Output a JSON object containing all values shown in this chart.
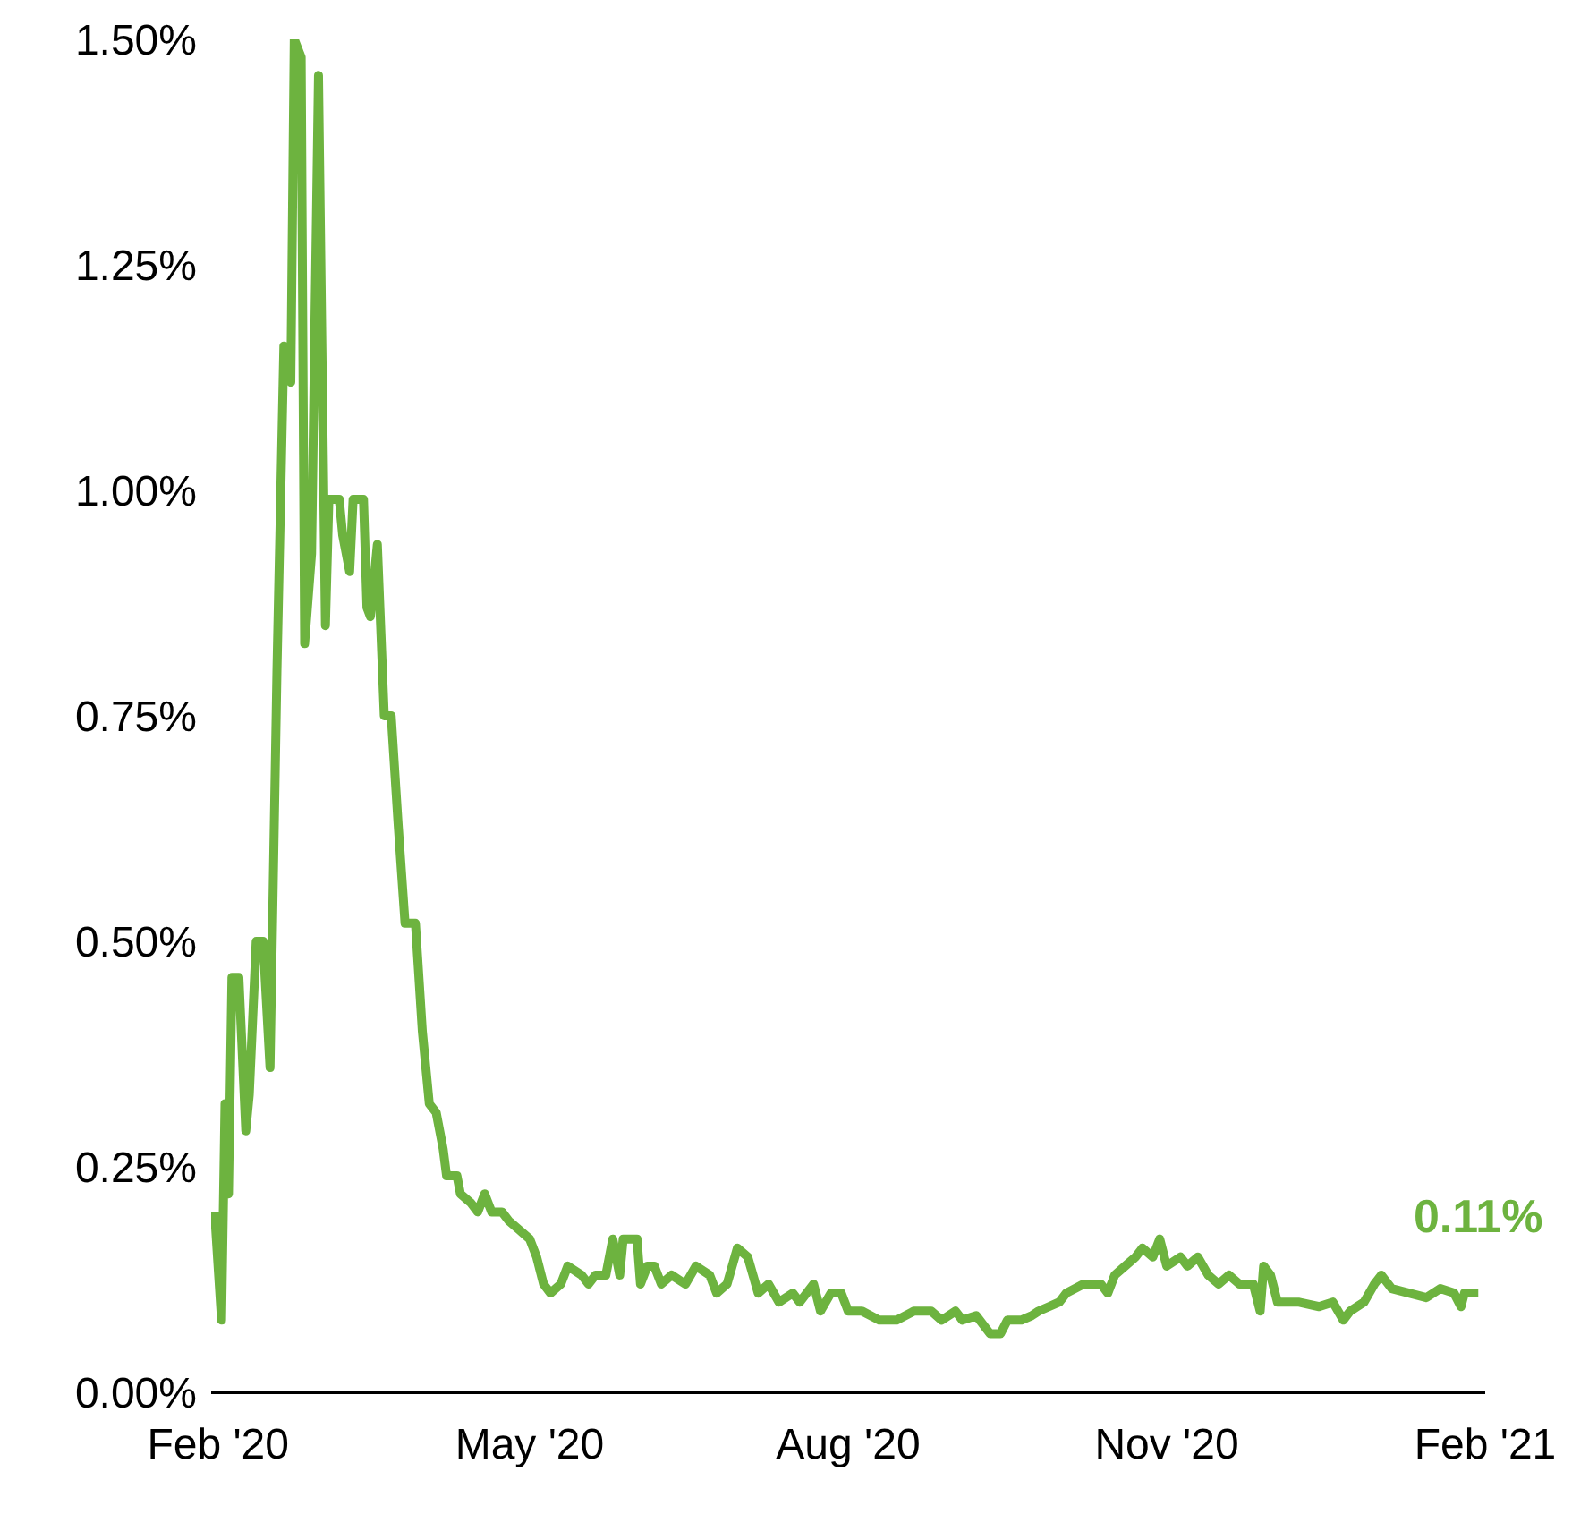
{
  "chart_data": {
    "type": "line",
    "color": "#6db33f",
    "grid": false,
    "marker": "none",
    "line_style": "solid",
    "x": [
      "2020-01-31",
      "2020-02-02",
      "2020-02-03",
      "2020-02-04",
      "2020-02-05",
      "2020-02-07",
      "2020-02-09",
      "2020-02-10",
      "2020-02-12",
      "2020-02-14",
      "2020-02-16",
      "2020-02-18",
      "2020-02-20",
      "2020-02-22",
      "2020-02-23",
      "2020-02-25",
      "2020-02-26",
      "2020-02-28",
      "2020-03-01",
      "2020-03-03",
      "2020-03-04",
      "2020-03-07",
      "2020-03-08",
      "2020-03-10",
      "2020-03-11",
      "2020-03-14",
      "2020-03-15",
      "2020-03-16",
      "2020-03-18",
      "2020-03-20",
      "2020-03-22",
      "2020-03-24",
      "2020-03-26",
      "2020-03-29",
      "2020-03-31",
      "2020-04-02",
      "2020-04-04",
      "2020-04-06",
      "2020-04-07",
      "2020-04-10",
      "2020-04-11",
      "2020-04-14",
      "2020-04-16",
      "2020-04-18",
      "2020-04-20",
      "2020-04-23",
      "2020-04-25",
      "2020-04-28",
      "2020-05-01",
      "2020-05-03",
      "2020-05-05",
      "2020-05-07",
      "2020-05-10",
      "2020-05-12",
      "2020-05-16",
      "2020-05-18",
      "2020-05-20",
      "2020-05-23",
      "2020-05-25",
      "2020-05-27",
      "2020-05-28",
      "2020-06-01",
      "2020-06-02",
      "2020-06-04",
      "2020-06-06",
      "2020-06-08",
      "2020-06-11",
      "2020-06-15",
      "2020-06-18",
      "2020-06-22",
      "2020-06-24",
      "2020-06-27",
      "2020-06-30",
      "2020-07-03",
      "2020-07-06",
      "2020-07-09",
      "2020-07-12",
      "2020-07-16",
      "2020-07-18",
      "2020-07-22",
      "2020-07-24",
      "2020-07-27",
      "2020-07-30",
      "2020-08-01",
      "2020-08-05",
      "2020-08-10",
      "2020-08-15",
      "2020-08-20",
      "2020-08-25",
      "2020-08-28",
      "2020-09-01",
      "2020-09-03",
      "2020-09-07",
      "2020-09-11",
      "2020-09-14",
      "2020-09-16",
      "2020-09-20",
      "2020-09-23",
      "2020-09-25",
      "2020-09-28",
      "2020-10-01",
      "2020-10-03",
      "2020-10-08",
      "2020-10-13",
      "2020-10-15",
      "2020-10-17",
      "2020-10-20",
      "2020-10-23",
      "2020-10-25",
      "2020-10-28",
      "2020-10-30",
      "2020-11-01",
      "2020-11-05",
      "2020-11-07",
      "2020-11-10",
      "2020-11-13",
      "2020-11-16",
      "2020-11-19",
      "2020-11-22",
      "2020-11-26",
      "2020-11-28",
      "2020-11-29",
      "2020-12-01",
      "2020-12-03",
      "2020-12-09",
      "2020-12-15",
      "2020-12-19",
      "2020-12-22",
      "2020-12-24",
      "2020-12-28",
      "2020-12-31",
      "2021-01-02",
      "2021-01-05",
      "2021-01-10",
      "2021-01-15",
      "2021-01-19",
      "2021-01-23",
      "2021-01-25",
      "2021-01-26",
      "2021-01-30"
    ],
    "values": [
      0.2,
      0.08,
      0.32,
      0.22,
      0.46,
      0.46,
      0.29,
      0.33,
      0.5,
      0.5,
      0.36,
      0.8,
      1.16,
      1.12,
      1.5,
      1.48,
      0.83,
      0.93,
      1.46,
      0.85,
      0.99,
      0.99,
      0.95,
      0.91,
      0.99,
      0.99,
      0.87,
      0.86,
      0.94,
      0.75,
      0.75,
      0.63,
      0.52,
      0.52,
      0.4,
      0.32,
      0.31,
      0.27,
      0.24,
      0.24,
      0.22,
      0.21,
      0.2,
      0.22,
      0.2,
      0.2,
      0.19,
      0.18,
      0.17,
      0.15,
      0.12,
      0.11,
      0.12,
      0.14,
      0.13,
      0.12,
      0.13,
      0.13,
      0.17,
      0.13,
      0.17,
      0.17,
      0.12,
      0.14,
      0.14,
      0.12,
      0.13,
      0.12,
      0.14,
      0.13,
      0.11,
      0.12,
      0.16,
      0.15,
      0.11,
      0.12,
      0.1,
      0.11,
      0.1,
      0.12,
      0.09,
      0.11,
      0.11,
      0.09,
      0.09,
      0.08,
      0.08,
      0.09,
      0.09,
      0.08,
      0.09,
      0.08,
      0.085,
      0.065,
      0.065,
      0.08,
      0.08,
      0.085,
      0.09,
      0.095,
      0.1,
      0.11,
      0.12,
      0.12,
      0.11,
      0.13,
      0.14,
      0.15,
      0.16,
      0.15,
      0.17,
      0.14,
      0.15,
      0.14,
      0.15,
      0.13,
      0.12,
      0.13,
      0.12,
      0.12,
      0.09,
      0.14,
      0.13,
      0.1,
      0.1,
      0.095,
      0.1,
      0.08,
      0.09,
      0.1,
      0.12,
      0.13,
      0.115,
      0.11,
      0.105,
      0.115,
      0.11,
      0.095,
      0.11,
      0.11
    ],
    "xlim": [
      "2020-01-30",
      "2021-02-01"
    ],
    "xticks": [
      {
        "value": "2020-02-01",
        "label": "Feb '20"
      },
      {
        "value": "2020-05-01",
        "label": "May '20"
      },
      {
        "value": "2020-08-01",
        "label": "Aug '20"
      },
      {
        "value": "2020-11-01",
        "label": "Nov '20"
      },
      {
        "value": "2021-02-01",
        "label": "Feb '21"
      }
    ],
    "ylim": [
      0,
      1.5
    ],
    "yticks": [
      {
        "value": 0,
        "label": "0.00%"
      },
      {
        "value": 0.25,
        "label": "0.25%"
      },
      {
        "value": 0.5,
        "label": "0.50%"
      },
      {
        "value": 0.75,
        "label": "0.75%"
      },
      {
        "value": 1,
        "label": "1.00%"
      },
      {
        "value": 1.25,
        "label": "1.25%"
      },
      {
        "value": 1.5,
        "label": "1.50%"
      }
    ],
    "annotations": [
      {
        "text": "0.11%",
        "x": "2021-01-30",
        "y": 0.11
      }
    ]
  }
}
